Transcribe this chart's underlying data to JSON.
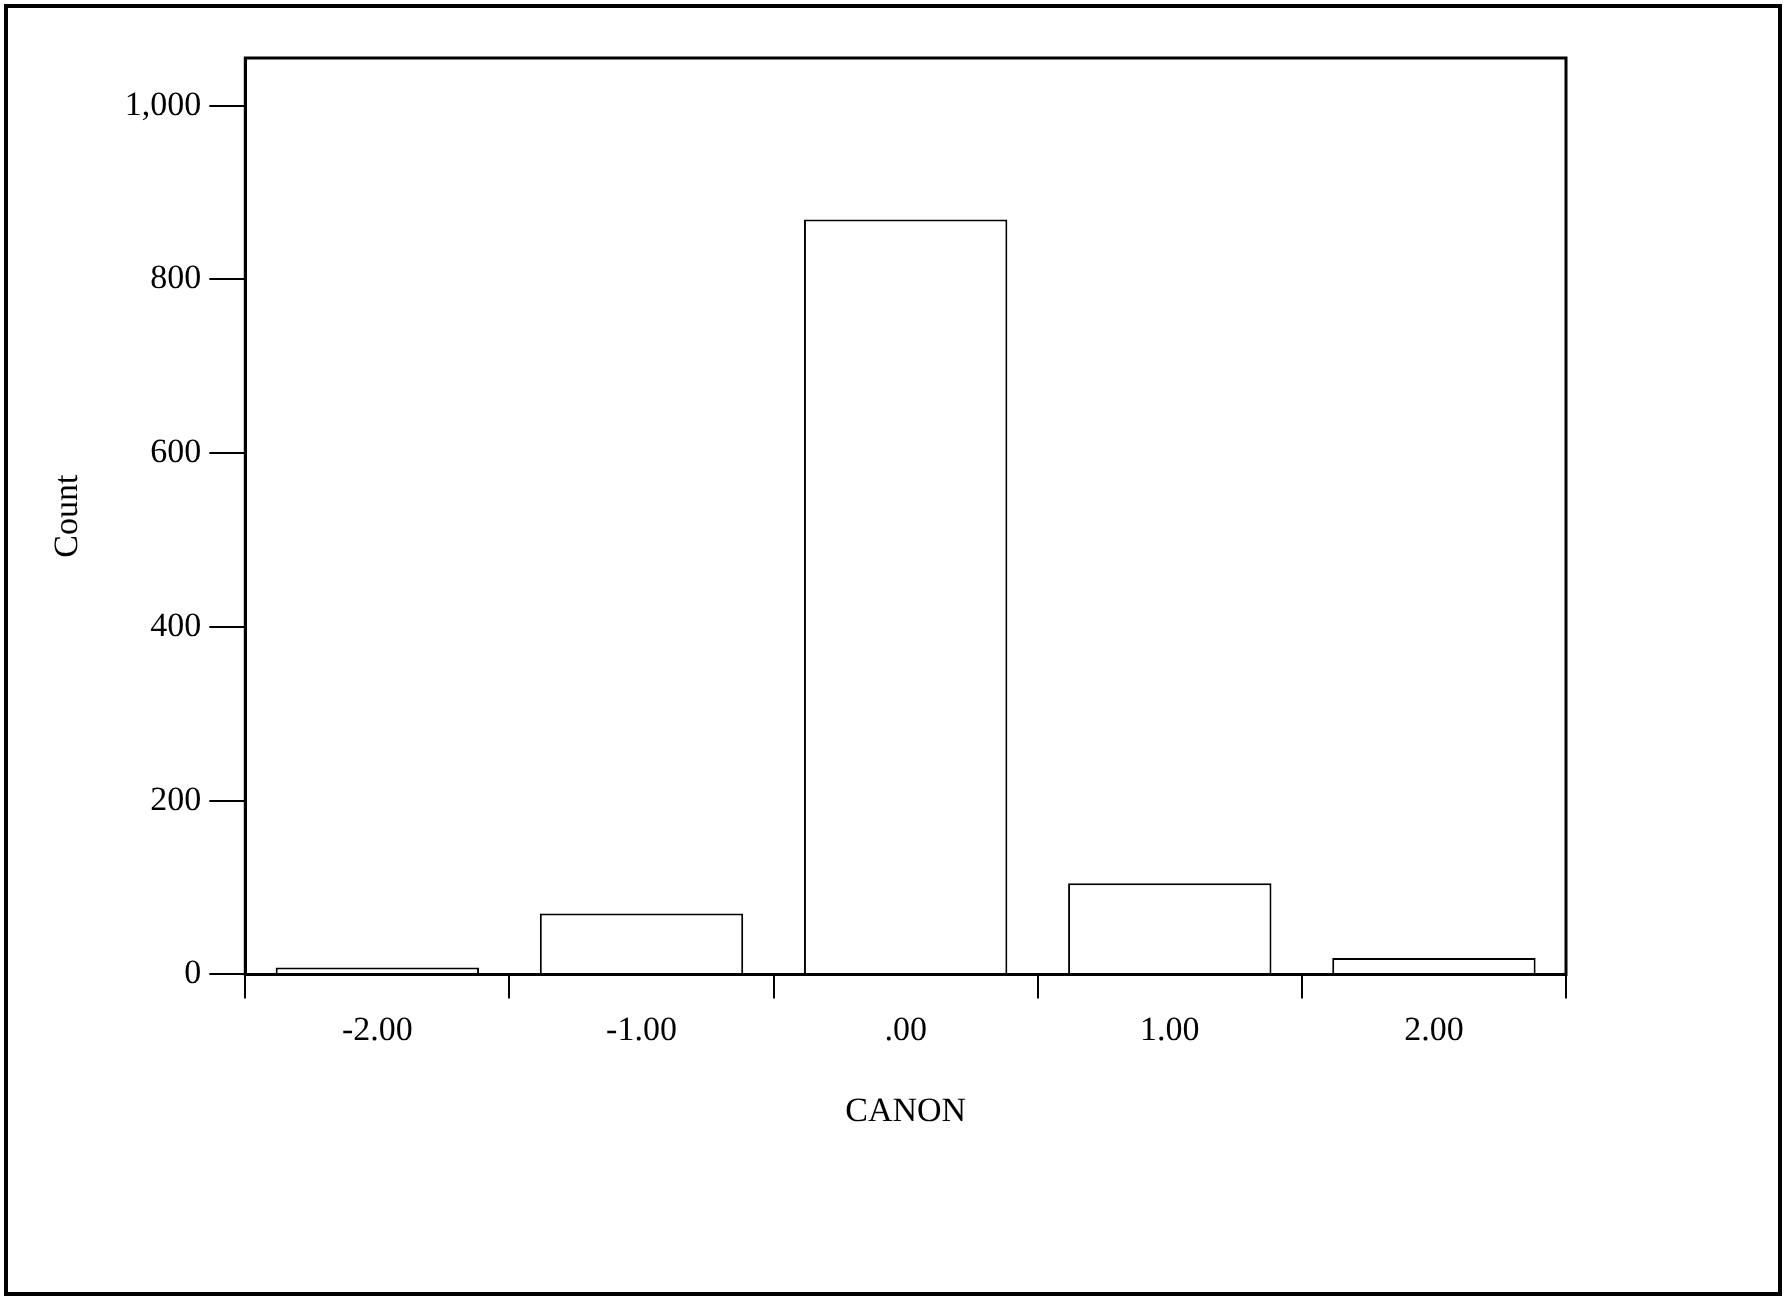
{
  "chart_data": {
    "type": "bar",
    "xlabel": "CANON",
    "ylabel": "Count",
    "categories": [
      "-2.00",
      "-1.00",
      ".00",
      "1.00",
      "2.00"
    ],
    "values": [
      8,
      70,
      869,
      105,
      19
    ],
    "color": "#ffffff",
    "ylim": [
      0,
      1055
    ],
    "yticks": [
      0,
      200,
      400,
      600,
      800,
      {
        "value": 1000,
        "label": "1,000"
      }
    ],
    "grid": false,
    "legend": false
  }
}
